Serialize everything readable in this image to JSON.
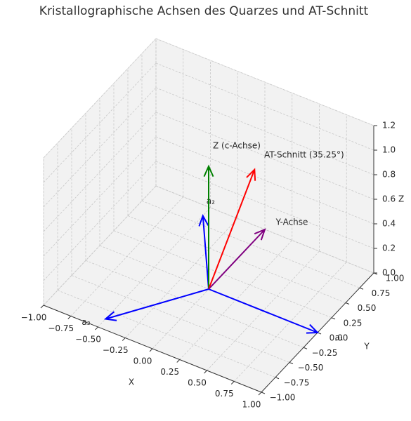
{
  "chart_data": {
    "type": "quiver3d",
    "title": "Kristallographische Achsen des Quarzes und AT-Schnitt",
    "xlabel": "X",
    "ylabel": "Y",
    "zlabel": "Z",
    "xlim": [
      -1,
      1
    ],
    "ylim": [
      -1,
      1
    ],
    "zlim": [
      0,
      1.2
    ],
    "xticks": [
      {
        "value": -1,
        "label": "−1.00"
      },
      {
        "value": -0.75,
        "label": "−0.75"
      },
      {
        "value": -0.5,
        "label": "−0.50"
      },
      {
        "value": -0.25,
        "label": "−0.25"
      },
      {
        "value": 0,
        "label": "0.00"
      },
      {
        "value": 0.25,
        "label": "0.25"
      },
      {
        "value": 0.5,
        "label": "0.50"
      },
      {
        "value": 0.75,
        "label": "0.75"
      },
      {
        "value": 1,
        "label": "1.00"
      }
    ],
    "yticks": [
      {
        "value": -1,
        "label": "−1.00"
      },
      {
        "value": -0.75,
        "label": "−0.75"
      },
      {
        "value": -0.5,
        "label": "−0.50"
      },
      {
        "value": -0.25,
        "label": "−0.25"
      },
      {
        "value": 0,
        "label": "0.00"
      },
      {
        "value": 0.25,
        "label": "0.25"
      },
      {
        "value": 0.5,
        "label": "0.50"
      },
      {
        "value": 0.75,
        "label": "0.75"
      },
      {
        "value": 1,
        "label": "1.00"
      }
    ],
    "zticks": [
      {
        "value": 0,
        "label": "0.0"
      },
      0.2,
      0.4,
      0.6,
      0.8,
      {
        "value": 1,
        "label": "1.0"
      },
      1.2
    ],
    "grid": true,
    "vectors": [
      {
        "label": "a₁",
        "color": "#0000ff",
        "x": 1,
        "y": 0,
        "z": 0
      },
      {
        "label": "a₂",
        "color": "#0000ff",
        "x": -0.5,
        "y": 0.866,
        "z": 0
      },
      {
        "label": "a₃",
        "color": "#0000ff",
        "x": -0.5,
        "y": -0.866,
        "z": 0
      },
      {
        "label": "Z (c-Achse)",
        "color": "#008000",
        "x": 0,
        "y": 0,
        "z": 1
      },
      {
        "label": "AT-Schnitt (35.25°)",
        "color": "#ff0000",
        "x": 0,
        "y": 0.816,
        "z": 0.577
      },
      {
        "label": "Y-Achse",
        "color": "#800080",
        "x": 0,
        "y": 1,
        "z": 0
      }
    ]
  }
}
